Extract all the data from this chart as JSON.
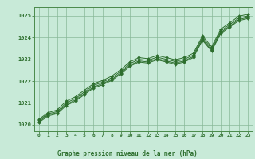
{
  "title": "Graphe pression niveau de la mer (hPa)",
  "bg_color": "#c8ead8",
  "grid_color": "#88b898",
  "line_color": "#2d6e2d",
  "border_color": "#4a8a4a",
  "xlim": [
    -0.5,
    23.5
  ],
  "ylim": [
    1019.7,
    1025.4
  ],
  "yticks": [
    1020,
    1021,
    1022,
    1023,
    1024,
    1025
  ],
  "xticks": [
    0,
    1,
    2,
    3,
    4,
    5,
    6,
    7,
    8,
    9,
    10,
    11,
    12,
    13,
    14,
    15,
    16,
    17,
    18,
    19,
    20,
    21,
    22,
    23
  ],
  "lines": [
    [
      1020.2,
      1020.5,
      1020.6,
      1021.0,
      1021.2,
      1021.5,
      1021.8,
      1021.95,
      1022.15,
      1022.45,
      1022.8,
      1023.0,
      1022.95,
      1023.1,
      1023.0,
      1022.9,
      1023.0,
      1023.2,
      1024.0,
      1023.5,
      1024.3,
      1024.6,
      1024.9,
      1025.0
    ],
    [
      1020.25,
      1020.55,
      1020.68,
      1021.08,
      1021.28,
      1021.58,
      1021.88,
      1022.03,
      1022.23,
      1022.53,
      1022.88,
      1023.08,
      1023.03,
      1023.18,
      1023.08,
      1022.98,
      1023.08,
      1023.28,
      1024.08,
      1023.58,
      1024.38,
      1024.68,
      1024.98,
      1025.08
    ],
    [
      1020.15,
      1020.45,
      1020.55,
      1020.93,
      1021.13,
      1021.43,
      1021.73,
      1021.88,
      1022.08,
      1022.38,
      1022.73,
      1022.93,
      1022.88,
      1023.03,
      1022.93,
      1022.83,
      1022.93,
      1023.13,
      1023.93,
      1023.43,
      1024.23,
      1024.53,
      1024.83,
      1024.93
    ],
    [
      1020.1,
      1020.4,
      1020.5,
      1020.88,
      1021.08,
      1021.38,
      1021.68,
      1021.83,
      1022.03,
      1022.33,
      1022.68,
      1022.88,
      1022.83,
      1022.98,
      1022.88,
      1022.78,
      1022.88,
      1023.08,
      1023.88,
      1023.38,
      1024.18,
      1024.48,
      1024.78,
      1024.88
    ]
  ]
}
